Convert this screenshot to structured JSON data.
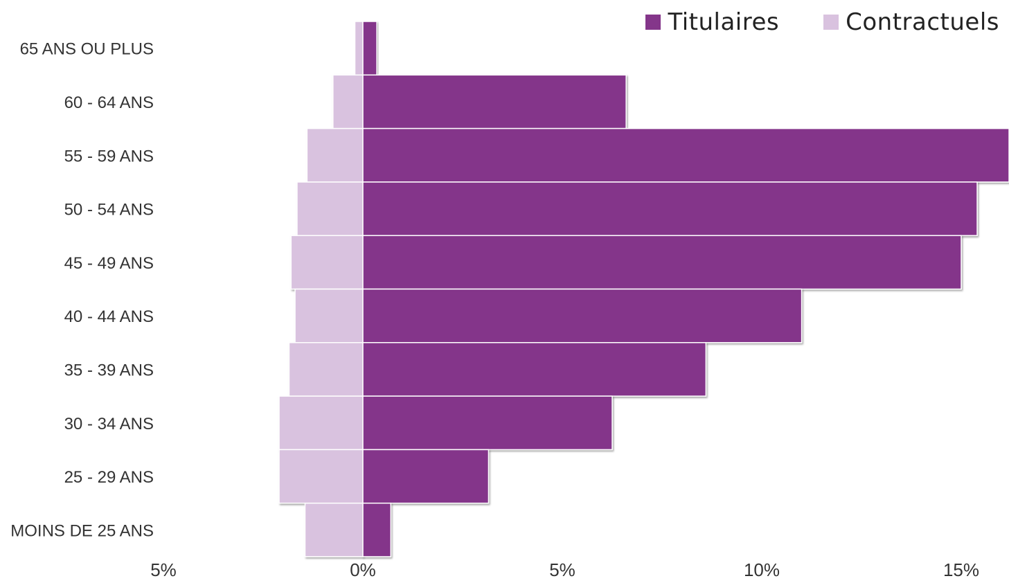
{
  "chart_data": {
    "type": "bar",
    "orientation": "horizontal",
    "layout": "population-pyramid",
    "categories": [
      "65 ANS OU PLUS",
      "60 - 64 ANS",
      "55 - 59 ANS",
      "50 - 54 ANS",
      "45 - 49 ANS",
      "40 - 44 ANS",
      "35 - 39 ANS",
      "30 - 34 ANS",
      "25 - 29 ANS",
      "MOINS DE 25 ANS"
    ],
    "series": [
      {
        "name": "Titulaires",
        "color": "#84368a",
        "side": "right",
        "values": [
          0.35,
          6.6,
          16.2,
          15.4,
          15.0,
          11.0,
          8.6,
          6.25,
          3.15,
          0.7
        ]
      },
      {
        "name": "Contractuels",
        "color": "#d9c2df",
        "side": "left",
        "values": [
          0.2,
          0.75,
          1.4,
          1.65,
          1.8,
          1.7,
          1.85,
          2.1,
          2.1,
          1.45
        ]
      }
    ],
    "xlim": [
      -5,
      16.2
    ],
    "xticks": [
      {
        "value": -5,
        "label": "5%"
      },
      {
        "value": 0,
        "label": "0%"
      },
      {
        "value": 5,
        "label": "5%"
      },
      {
        "value": 10,
        "label": "10%"
      },
      {
        "value": 15,
        "label": "15%"
      }
    ],
    "grid": false,
    "legend_position": "top-right",
    "title": "",
    "xlabel": "",
    "ylabel": ""
  }
}
